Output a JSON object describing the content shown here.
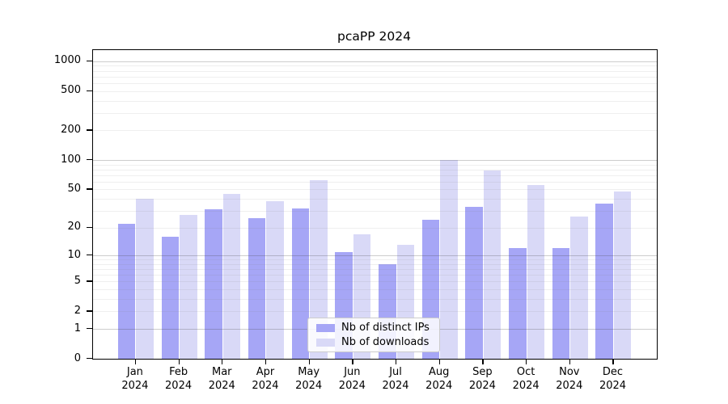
{
  "window": {
    "background": "#ffffff"
  },
  "chart_data": {
    "type": "bar",
    "title": "pcaPP 2024",
    "xlabel": "",
    "ylabel": "",
    "yscale": "log1p",
    "ylim": [
      0,
      1292
    ],
    "grid": "on",
    "legend_position": "lower-center-inside",
    "ytick_values": [
      0,
      1,
      2,
      5,
      10,
      20,
      50,
      100,
      200,
      500,
      1000
    ],
    "categories": [
      "Jan 2024",
      "Feb 2024",
      "Mar 2024",
      "Apr 2024",
      "May 2024",
      "Jun 2024",
      "Jul 2024",
      "Aug 2024",
      "Sep 2024",
      "Oct 2024",
      "Nov 2024",
      "Dec 2024"
    ],
    "series": [
      {
        "name": "Nb of distinct IPs",
        "color": "#a6a6f6",
        "values": [
          22,
          16,
          31,
          25,
          32,
          11,
          8,
          24,
          33,
          12,
          12,
          36
        ]
      },
      {
        "name": "Nb of downloads",
        "color": "#d9d9f7",
        "values": [
          40,
          27,
          45,
          38,
          62,
          17,
          13,
          100,
          78,
          56,
          26,
          48
        ]
      }
    ],
    "colors": {
      "major_grid": "#c4c4c4",
      "minor_grid": "#ececec",
      "axis": "#000000",
      "text": "#000000"
    }
  }
}
